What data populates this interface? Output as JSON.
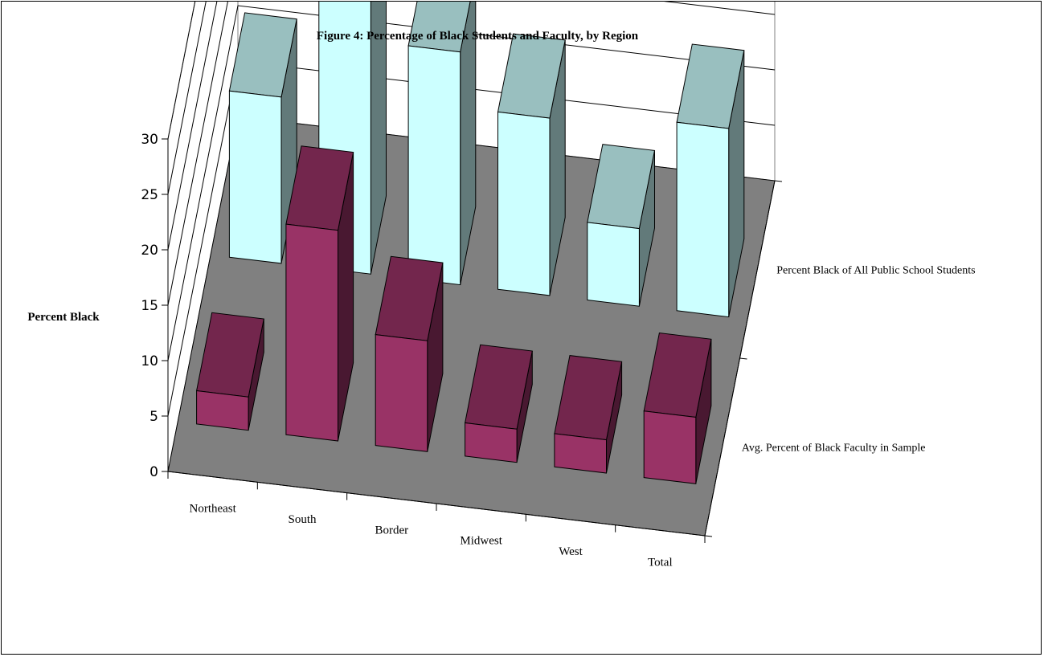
{
  "chart_data": {
    "type": "bar",
    "title": "Figure 4: Percentage of Black Students and Faculty, by Region",
    "ylabel": "Percent Black",
    "xlabel": "",
    "categories": [
      "Northeast",
      "South",
      "Border",
      "Midwest",
      "West",
      "Total"
    ],
    "series": [
      {
        "name": "Avg. Percent of Black Faculty in Sample",
        "values": [
          3,
          19,
          10,
          3,
          3,
          6
        ],
        "color": "#993366"
      },
      {
        "name": "Percent Black of All Public School Students",
        "values": [
          15,
          26,
          21,
          16,
          7,
          17
        ],
        "color": "#ccffff"
      }
    ],
    "ylim": [
      0,
      30
    ],
    "yticks": [
      "0",
      "5",
      "10",
      "15",
      "20",
      "25",
      "30"
    ],
    "grid": true,
    "legend_position": "right-of-depth-axis",
    "floor_color": "#808080"
  }
}
